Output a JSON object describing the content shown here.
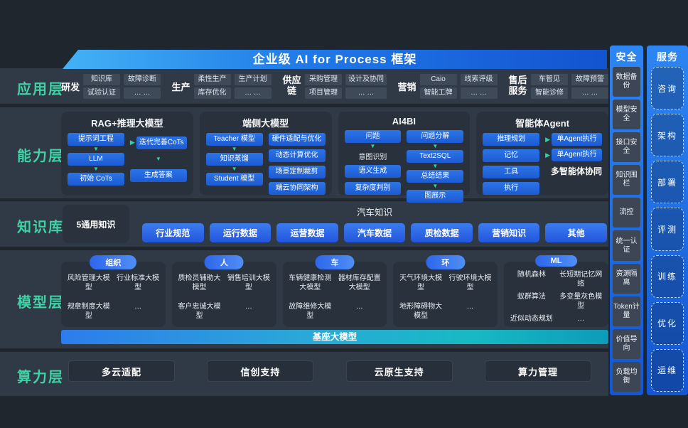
{
  "banner": {
    "title": "企业级 AI for Process 框架"
  },
  "colors": {
    "accent_teal": "#3ed2a6",
    "accent_blue": "#2570e6",
    "band_bg": "#303a46"
  },
  "app": {
    "label": "应用层",
    "groups": [
      {
        "name": "研发",
        "items": [
          "知识库",
          "试验认证",
          "故障诊断",
          "… …"
        ]
      },
      {
        "name": "生产",
        "items": [
          "柔性生产",
          "库存优化",
          "生产计划",
          "… …"
        ]
      },
      {
        "name": "供应链",
        "items": [
          "采购管理",
          "项目管理",
          "设计及协同",
          "… …"
        ]
      },
      {
        "name": "营销",
        "items": [
          "Caio",
          "智能工牌",
          "线索评级",
          "… …"
        ]
      },
      {
        "name": "售后服务",
        "items": [
          "车智见",
          "智能诊修",
          "故障预警",
          "… …"
        ]
      }
    ]
  },
  "capability": {
    "label": "能力层",
    "cards": [
      {
        "title": "RAG+推理大模型",
        "left": [
          "提示词工程",
          "LLM",
          "初始 CoTs"
        ],
        "right": [
          "迭代完善CoTs",
          "生成答案"
        ]
      },
      {
        "title": "端侧大模型",
        "left": [
          "Teacher 模型",
          "知识蒸馏",
          "Student 模型"
        ],
        "right": [
          "硬件适配与优化",
          "动态计算优化",
          "场景定制裁剪",
          "端云协同架构"
        ]
      },
      {
        "title": "AI4BI",
        "left": [
          "问题",
          "意图识别",
          "语义生成",
          "复杂度判别"
        ],
        "right": [
          "问题分解",
          "Text2SQL",
          "总结结果",
          "图展示"
        ]
      },
      {
        "title": "智能体Agent",
        "left": [
          "推理规划",
          "记忆",
          "工具",
          "执行"
        ],
        "right": [
          "单Agent执行",
          "单Agent执行"
        ],
        "note": "多智能体协同"
      }
    ]
  },
  "knowledge": {
    "label": "知识库",
    "general": "5通用知识",
    "domain_title": "汽车知识",
    "chips": [
      "行业规范",
      "运行数据",
      "运营数据",
      "汽车数据",
      "质检数据",
      "营销知识",
      "其他"
    ]
  },
  "model": {
    "label": "模型层",
    "base_bar": "基座大模型",
    "groups": [
      {
        "pill": "组织",
        "items": [
          "风险管理大模型",
          "行业标准大模型",
          "规章制度大模型",
          "…"
        ]
      },
      {
        "pill": "人",
        "items": [
          "质检员辅助大模型",
          "销售培训大模型",
          "客户忠诚大模型",
          "…"
        ]
      },
      {
        "pill": "车",
        "items": [
          "车辆健康检测大模型",
          "器材库存配置大模型",
          "故障维修大模型",
          "…"
        ]
      },
      {
        "pill": "环",
        "items": [
          "天气环境大模型",
          "行驶环境大模型",
          "地形障碍物大模型",
          "…"
        ]
      },
      {
        "pill": "ML",
        "items": [
          "随机森林",
          "长短期记忆网络",
          "蚁群算法",
          "多变量灰色模型",
          "近似动态规划",
          "…"
        ]
      }
    ]
  },
  "compute": {
    "label": "算力层",
    "items": [
      "多云适配",
      "信创支持",
      "云原生支持",
      "算力管理"
    ]
  },
  "security": {
    "title": "安全",
    "items": [
      "数据备份",
      "模型安全",
      "接口安全",
      "知识围栏",
      "流控",
      "统一认证",
      "资源隔离",
      "Token计量",
      "价值导向",
      "负载均衡"
    ]
  },
  "service": {
    "title": "服务",
    "items": [
      "咨询",
      "架构",
      "部署",
      "评测",
      "训练",
      "优化",
      "运维"
    ]
  }
}
